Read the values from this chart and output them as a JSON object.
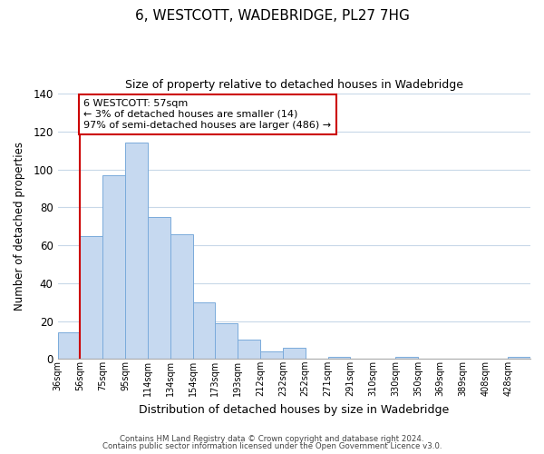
{
  "title": "6, WESTCOTT, WADEBRIDGE, PL27 7HG",
  "subtitle": "Size of property relative to detached houses in Wadebridge",
  "bar_values": [
    14,
    65,
    97,
    114,
    75,
    66,
    30,
    19,
    10,
    4,
    6,
    0,
    1,
    0,
    0,
    1,
    0,
    0,
    0,
    0,
    1
  ],
  "bin_labels": [
    "36sqm",
    "56sqm",
    "75sqm",
    "95sqm",
    "114sqm",
    "134sqm",
    "154sqm",
    "173sqm",
    "193sqm",
    "212sqm",
    "232sqm",
    "252sqm",
    "271sqm",
    "291sqm",
    "310sqm",
    "330sqm",
    "350sqm",
    "369sqm",
    "389sqm",
    "408sqm",
    "428sqm"
  ],
  "bar_color": "#c6d9f0",
  "bar_edge_color": "#7aabdb",
  "vline_x": 1,
  "vline_color": "#cc0000",
  "ylabel": "Number of detached properties",
  "xlabel": "Distribution of detached houses by size in Wadebridge",
  "ylim": [
    0,
    140
  ],
  "yticks": [
    0,
    20,
    40,
    60,
    80,
    100,
    120,
    140
  ],
  "annotation_title": "6 WESTCOTT: 57sqm",
  "annotation_line1": "← 3% of detached houses are smaller (14)",
  "annotation_line2": "97% of semi-detached houses are larger (486) →",
  "annotation_box_color": "#ffffff",
  "annotation_box_edge": "#cc0000",
  "footer1": "Contains HM Land Registry data © Crown copyright and database right 2024.",
  "footer2": "Contains public sector information licensed under the Open Government Licence v3.0.",
  "bg_color": "#ffffff",
  "grid_color": "#c8d8e8"
}
